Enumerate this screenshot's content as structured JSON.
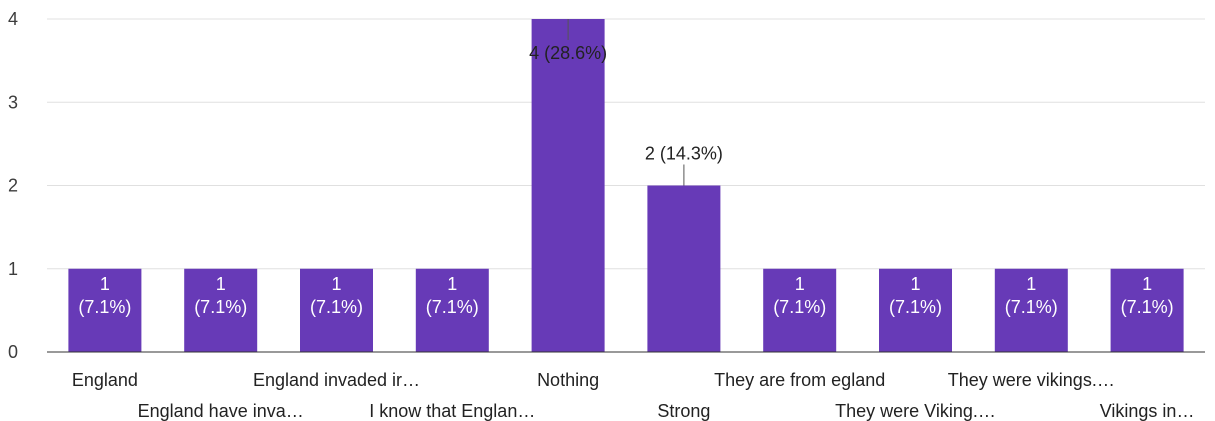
{
  "chart_data": {
    "type": "bar",
    "categories": [
      "England",
      "England have inva…",
      "England invaded ir…",
      "I know that Englan…",
      "Nothing",
      "Strong",
      "They are from egland",
      "They were Viking.…",
      "They were vikings.…",
      "Vikings in…"
    ],
    "values": [
      1,
      1,
      1,
      1,
      4,
      2,
      1,
      1,
      1,
      1
    ],
    "data_labels": [
      "1 (7.1%)",
      "1 (7.1%)",
      "1 (7.1%)",
      "1 (7.1%)",
      "4 (28.6%)",
      "2 (14.3%)",
      "1 (7.1%)",
      "1 (7.1%)",
      "1 (7.1%)",
      "1 (7.1%)"
    ],
    "ylim": [
      0,
      4
    ],
    "yticks": [
      0,
      1,
      2,
      3,
      4
    ],
    "grid": true,
    "bar_color": "#673ab7"
  }
}
